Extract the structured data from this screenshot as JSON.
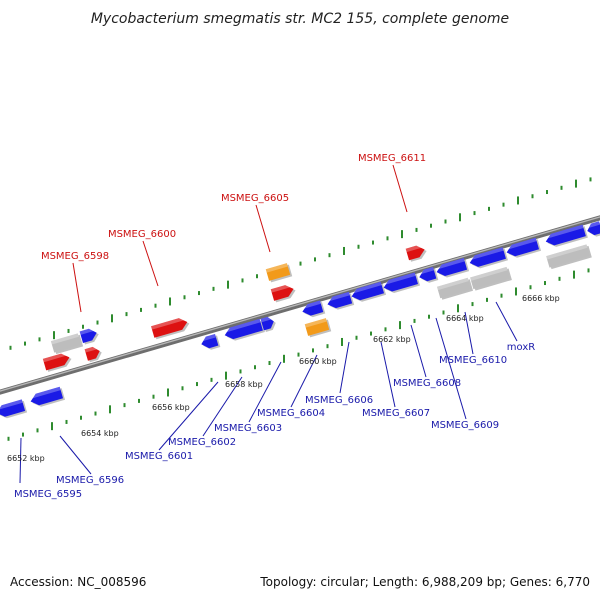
{
  "title": "Mycobacterium smegmatis str. MC2 155, complete genome",
  "footer": {
    "accession": "Accession: NC_008596",
    "summary": "Topology: circular; Length: 6,988,209 bp; Genes: 6,770"
  },
  "colors": {
    "forward": "#dd1111",
    "reverse": "#1a1ae6",
    "rna": "#f29a1a",
    "pseudo": "#bdbdbd",
    "backbone": "#8a8a8a",
    "ticks": "#2e8b2e",
    "top_label": "#cc1111",
    "bottom_label": "#1a1aaa"
  },
  "scale": {
    "unit": "kbp",
    "labels": [
      "6652 kbp",
      "6654 kbp",
      "6656 kbp",
      "6658 kbp",
      "6660 kbp",
      "6662 kbp",
      "6664 kbp",
      "6666 kbp"
    ]
  },
  "genes_top": [
    {
      "label": "MSMEG_6598"
    },
    {
      "label": "MSMEG_6600"
    },
    {
      "label": "MSMEG_6605"
    },
    {
      "label": "MSMEG_6611"
    }
  ],
  "genes_bottom": [
    {
      "label": "MSMEG_6595"
    },
    {
      "label": "MSMEG_6596"
    },
    {
      "label": "MSMEG_6601"
    },
    {
      "label": "MSMEG_6602"
    },
    {
      "label": "MSMEG_6603"
    },
    {
      "label": "MSMEG_6604"
    },
    {
      "label": "MSMEG_6606"
    },
    {
      "label": "MSMEG_6607"
    },
    {
      "label": "MSMEG_6608"
    },
    {
      "label": "MSMEG_6609"
    },
    {
      "label": "MSMEG_6610"
    },
    {
      "label": "moxR"
    }
  ]
}
